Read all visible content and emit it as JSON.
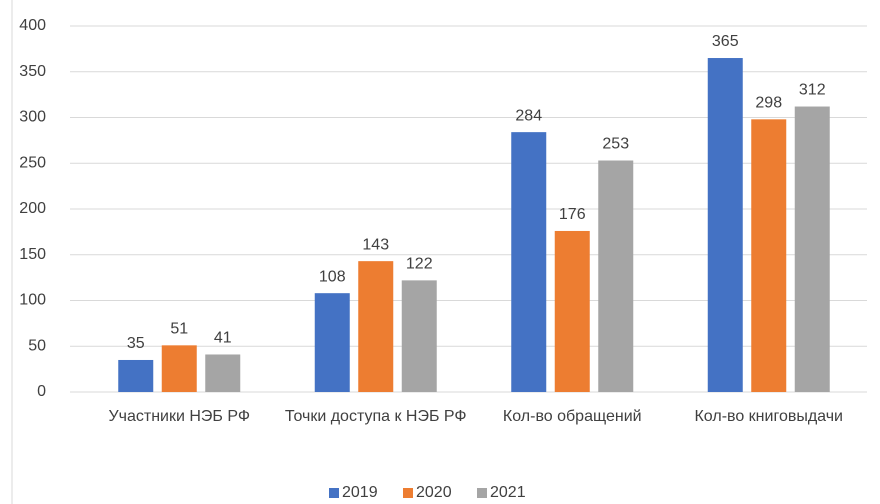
{
  "chart_data": {
    "type": "bar",
    "categories": [
      "Участники НЭБ РФ",
      "Точки доступа к НЭБ РФ",
      "Кол-во обращений",
      "Кол-во книговыдачи"
    ],
    "series": [
      {
        "name": "2019",
        "color": "#4472c4",
        "values": [
          35,
          108,
          284,
          365
        ]
      },
      {
        "name": "2020",
        "color": "#ed7d31",
        "values": [
          51,
          143,
          176,
          298
        ]
      },
      {
        "name": "2021",
        "color": "#a5a5a5",
        "values": [
          41,
          122,
          253,
          312
        ]
      }
    ],
    "ylim": [
      0,
      400
    ],
    "yticks": [
      0,
      50,
      100,
      150,
      200,
      250,
      300,
      350,
      400
    ],
    "grid": true,
    "legend": "bottom"
  }
}
